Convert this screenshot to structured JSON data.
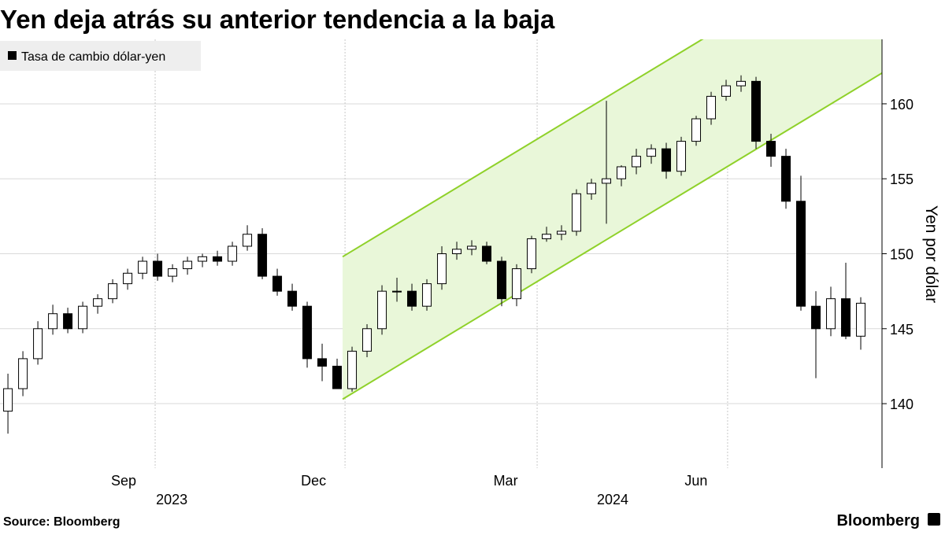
{
  "chart_data": {
    "type": "candlestick",
    "title": "Yen deja atrás su anterior tendencia a la baja",
    "y_label": "Yen por dólar",
    "source": "Source:  Bloomberg",
    "logo": "Bloomberg",
    "series": [
      {
        "name": "Tasa de cambio dólar-yen",
        "color": "#000000",
        "open": [
          139.5,
          141,
          143,
          145,
          146,
          145,
          146.5,
          147,
          148,
          148.7,
          149.5,
          148.5,
          149,
          149.5,
          149.8,
          149.5,
          150.5,
          151.3,
          148.5,
          147.5,
          146.5,
          143,
          142.5,
          141,
          143.5,
          145,
          147.5,
          147.5,
          146.5,
          148,
          150,
          150.3,
          150.5,
          149.5,
          147,
          149,
          151,
          151.3,
          151.5,
          154,
          154.7,
          155,
          155.8,
          156.5,
          157,
          155.5,
          157.5,
          159,
          160.5,
          161.2,
          161.5,
          157.5,
          156.5,
          153.5,
          146.5,
          145,
          147,
          144.5
        ],
        "high": [
          142,
          143.5,
          145.5,
          146.6,
          146.4,
          146.8,
          147.3,
          148.3,
          149,
          149.8,
          150,
          149.3,
          149.8,
          150,
          150.2,
          150.8,
          151.9,
          151.7,
          149,
          148,
          146.8,
          144,
          143,
          143.8,
          145.3,
          147.9,
          148.4,
          148,
          148.3,
          150.5,
          150.8,
          150.9,
          150.8,
          149.8,
          149.3,
          151.2,
          151.8,
          151.9,
          154.3,
          155,
          160.2,
          155.9,
          157,
          157.3,
          157.4,
          157.8,
          159.2,
          160.8,
          161.6,
          161.9,
          161.8,
          158,
          157,
          155.2,
          147.5,
          147.8,
          149.4,
          147.1
        ],
        "low": [
          138,
          140.5,
          142.6,
          144.6,
          144.7,
          144.7,
          146,
          146.7,
          147.6,
          148.3,
          148.2,
          148.1,
          148.6,
          149.1,
          149.2,
          149.2,
          150.2,
          148.3,
          147.2,
          146.2,
          142.4,
          141.5,
          141,
          140.8,
          143.1,
          144.6,
          146.8,
          146.2,
          146.2,
          147.6,
          149.6,
          149.9,
          149.3,
          146.5,
          146.5,
          148.7,
          150.8,
          150.9,
          151.2,
          153.6,
          152,
          154.5,
          155.3,
          156,
          155,
          155.2,
          157.2,
          158.6,
          160.2,
          160.8,
          157,
          155.8,
          153,
          146.2,
          141.7,
          144.5,
          144.3,
          143.6
        ],
        "close": [
          141,
          143,
          145,
          146,
          145,
          146.5,
          147,
          148,
          148.7,
          149.5,
          148.5,
          149,
          149.5,
          149.8,
          149.5,
          150.5,
          151.3,
          148.5,
          147.5,
          146.5,
          143,
          142.5,
          141,
          143.5,
          145,
          147.5,
          147.5,
          146.5,
          148,
          150,
          150.3,
          150.5,
          149.5,
          147,
          149,
          151,
          151.3,
          151.5,
          154,
          154.7,
          155,
          155.8,
          156.5,
          157,
          155.5,
          157.5,
          159,
          160.5,
          161.2,
          161.5,
          157.5,
          156.5,
          153.5,
          146.5,
          145,
          147,
          144.5,
          146.7
        ]
      }
    ],
    "channel": {
      "color": "#8fd12a",
      "fill": "#e9f7d9",
      "x": [
        22.37,
        58.42
      ],
      "lower": [
        140.3,
        162.05
      ],
      "upper": [
        149.8,
        171.55
      ]
    },
    "xlim": [
      -0.53,
      58.42
    ],
    "xticks": [
      {
        "value": 9.84,
        "label": "Sep"
      },
      {
        "value": 22.53,
        "label": "Dec"
      },
      {
        "value": 35.37,
        "label": "Mar"
      },
      {
        "value": 48.1,
        "label": "Jun"
      }
    ],
    "xticks2": [
      {
        "value": 10.95,
        "label": "2023"
      },
      {
        "value": 40.42,
        "label": "2024"
      }
    ],
    "ylim": [
      135.7,
      164.3
    ],
    "yticks": [
      140,
      145,
      150,
      155,
      160
    ],
    "grid": true
  }
}
